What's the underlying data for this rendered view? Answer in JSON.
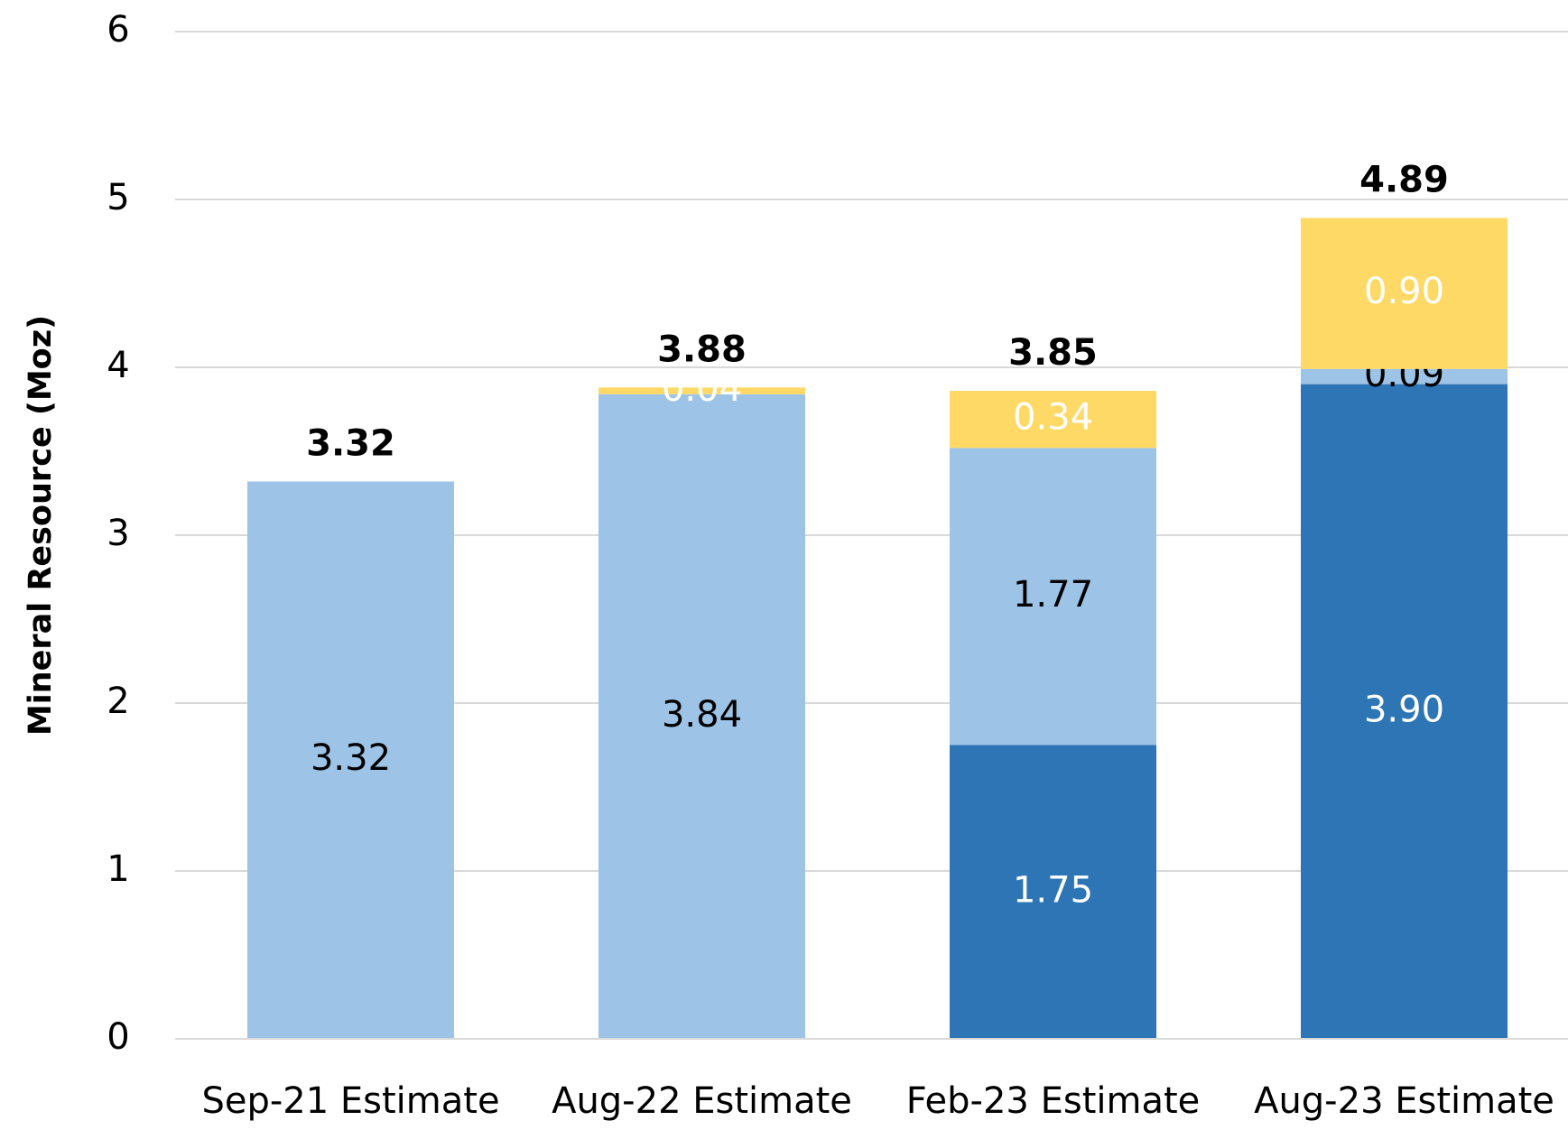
{
  "chart_data": {
    "type": "stacked_bar",
    "y_label": "Mineral Resource (Moz)",
    "categories": [
      "Sep-21 Estimate",
      "Aug-22 Estimate",
      "Feb-23 Estimate",
      "Aug-23 Estimate"
    ],
    "series": [
      {
        "color": "#2e75b6",
        "label_color": "#ffffff",
        "values": [
          null,
          null,
          1.75,
          3.9
        ],
        "value_labels": [
          null,
          null,
          "1.75",
          "3.90"
        ]
      },
      {
        "color": "#9dc3e6",
        "label_color": "#000000",
        "values": [
          3.32,
          3.84,
          1.77,
          0.09
        ],
        "value_labels": [
          "3.32",
          "3.84",
          "1.77",
          "0.09"
        ]
      },
      {
        "color": "#ffd966",
        "label_color": "#ffffff",
        "values": [
          null,
          0.04,
          0.34,
          0.9
        ],
        "value_labels": [
          null,
          "0.04",
          "0.34",
          "0.90"
        ]
      }
    ],
    "totals": [
      3.32,
      3.88,
      3.85,
      4.89
    ],
    "ylim": [
      0,
      6
    ],
    "yticks": [
      0,
      1,
      2,
      3,
      4,
      5,
      6
    ],
    "grid": true
  }
}
